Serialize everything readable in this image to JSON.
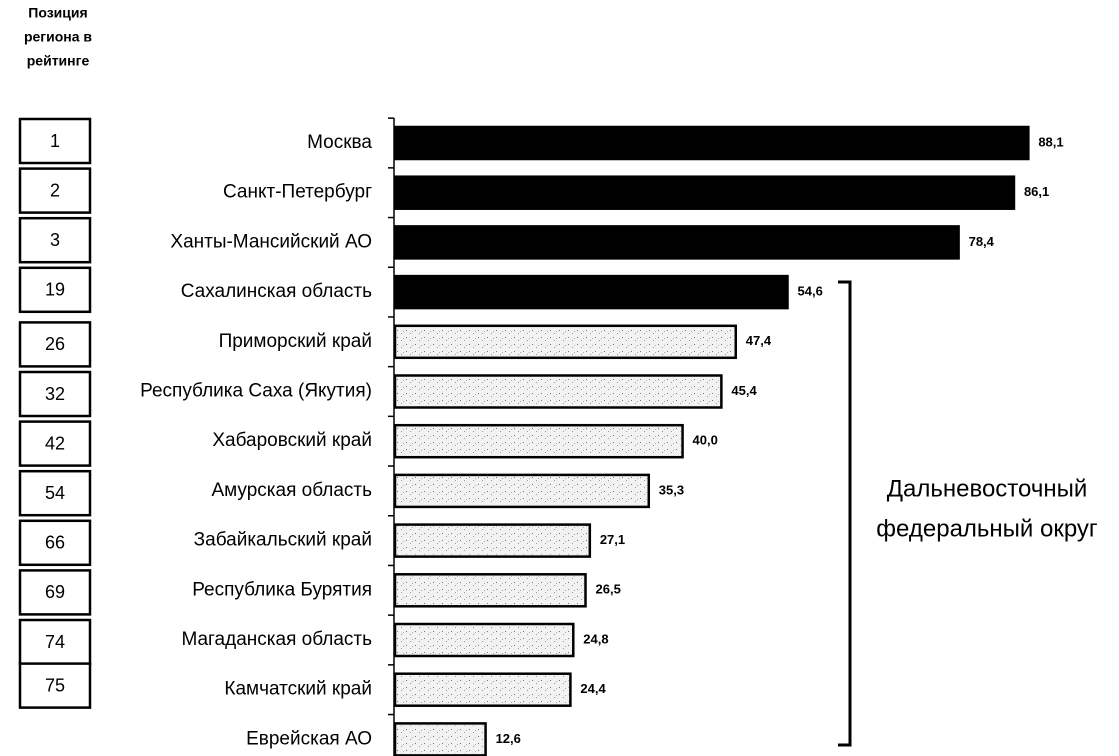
{
  "chart_data": {
    "type": "bar",
    "orientation": "horizontal",
    "rank_header": [
      "Позиция",
      "региона в",
      "рейтинге"
    ],
    "ranks": [
      1,
      2,
      3,
      19,
      26,
      32,
      42,
      54,
      66,
      69,
      74,
      75,
      75
    ],
    "categories": [
      "Москва",
      "Санкт-Петербург",
      "Ханты-Мансийский АО",
      "Сахалинская область",
      "Приморский край",
      "Республика Саха (Якутия)",
      "Хабаровский край",
      "Амурская область",
      "Забайкальский край",
      "Республика Бурятия",
      "Магаданская область",
      "Камчатский край",
      "Еврейская АО"
    ],
    "values": [
      88.1,
      86.1,
      78.4,
      54.6,
      47.4,
      45.4,
      40.0,
      35.3,
      27.1,
      26.5,
      24.8,
      24.4,
      12.6
    ],
    "value_labels": [
      "88,1",
      "86,1",
      "78,4",
      "54,6",
      "47,4",
      "45,4",
      "40,0",
      "35,3",
      "27,1",
      "26,5",
      "24,8",
      "24,4",
      "12,6"
    ],
    "colors": [
      "#000000",
      "#000000",
      "#000000",
      "#000000",
      "#f2f2f2",
      "#f2f2f2",
      "#f2f2f2",
      "#f2f2f2",
      "#f2f2f2",
      "#f2f2f2",
      "#f2f2f2",
      "#f2f2f2",
      "#f2f2f2"
    ],
    "xlim": [
      0,
      90
    ],
    "annotation": [
      "Дальневосточный",
      "федеральный округ"
    ]
  }
}
